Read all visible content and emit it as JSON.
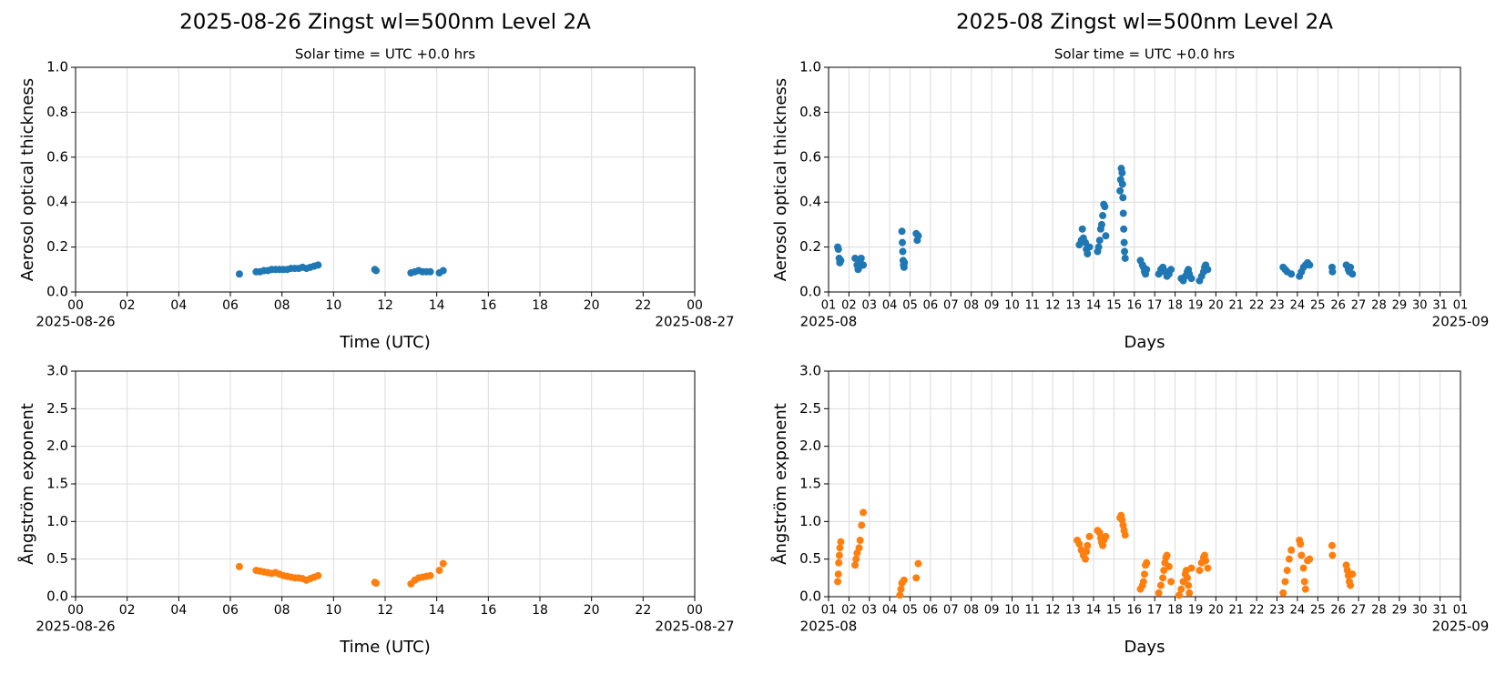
{
  "chart_data": [
    {
      "type": "scatter",
      "title": "2025-08-26  Zingst  wl=500nm  Level 2A",
      "subtitle": "Solar time = UTC +0.0 hrs",
      "xlabel": "Time (UTC)",
      "ylabel": "Aerosol optical thickness",
      "color": "#1f77b4",
      "grid": true,
      "xlim": [
        0,
        24
      ],
      "ylim": [
        0,
        1
      ],
      "xticks": [
        {
          "value": 0,
          "label": "00"
        },
        {
          "value": 2,
          "label": "02"
        },
        {
          "value": 4,
          "label": "04"
        },
        {
          "value": 6,
          "label": "06"
        },
        {
          "value": 8,
          "label": "08"
        },
        10,
        12,
        14,
        16,
        18,
        20,
        22,
        {
          "value": 24,
          "label": "00"
        }
      ],
      "yticks": [
        {
          "value": 0,
          "label": "0.0"
        },
        0.2,
        0.4,
        0.6,
        0.8,
        {
          "value": 1,
          "label": "1.0"
        }
      ],
      "x_edge_labels": [
        "2025-08-26",
        "2025-08-27"
      ],
      "x": [
        6.35,
        7.0,
        7.15,
        7.3,
        7.45,
        7.6,
        7.75,
        7.9,
        8.05,
        8.2,
        8.35,
        8.5,
        8.65,
        8.8,
        8.95,
        9.1,
        9.25,
        9.4,
        11.6,
        11.65,
        13.0,
        13.15,
        13.3,
        13.45,
        13.6,
        13.75,
        14.1,
        14.25
      ],
      "values": [
        0.08,
        0.09,
        0.09,
        0.095,
        0.095,
        0.1,
        0.1,
        0.1,
        0.1,
        0.1,
        0.105,
        0.105,
        0.105,
        0.11,
        0.105,
        0.11,
        0.115,
        0.12,
        0.1,
        0.095,
        0.085,
        0.09,
        0.095,
        0.09,
        0.09,
        0.09,
        0.085,
        0.095
      ]
    },
    {
      "type": "scatter",
      "xlabel": "Time (UTC)",
      "ylabel": "Ångström exponent",
      "color": "#ff7f0e",
      "grid": true,
      "xlim": [
        0,
        24
      ],
      "ylim": [
        0,
        3
      ],
      "xticks": [
        {
          "value": 0,
          "label": "00"
        },
        {
          "value": 2,
          "label": "02"
        },
        {
          "value": 4,
          "label": "04"
        },
        {
          "value": 6,
          "label": "06"
        },
        {
          "value": 8,
          "label": "08"
        },
        10,
        12,
        14,
        16,
        18,
        20,
        22,
        {
          "value": 24,
          "label": "00"
        }
      ],
      "yticks": [
        {
          "value": 0,
          "label": "0.0"
        },
        0.5,
        {
          "value": 1,
          "label": "1.0"
        },
        1.5,
        {
          "value": 2,
          "label": "2.0"
        },
        2.5,
        {
          "value": 3,
          "label": "3.0"
        }
      ],
      "x_edge_labels": [
        "2025-08-26",
        "2025-08-27"
      ],
      "x": [
        6.35,
        7.0,
        7.15,
        7.3,
        7.45,
        7.6,
        7.75,
        7.9,
        8.05,
        8.2,
        8.35,
        8.5,
        8.65,
        8.8,
        8.95,
        9.1,
        9.25,
        9.4,
        11.6,
        11.65,
        13.0,
        13.15,
        13.3,
        13.45,
        13.6,
        13.75,
        14.1,
        14.25
      ],
      "values": [
        0.4,
        0.35,
        0.34,
        0.33,
        0.32,
        0.31,
        0.32,
        0.3,
        0.28,
        0.27,
        0.26,
        0.25,
        0.25,
        0.24,
        0.22,
        0.24,
        0.26,
        0.28,
        0.19,
        0.18,
        0.17,
        0.22,
        0.25,
        0.26,
        0.27,
        0.28,
        0.35,
        0.44
      ]
    },
    {
      "type": "scatter",
      "title": "2025-08  Zingst  wl=500nm  Level 2A",
      "subtitle": "Solar time = UTC +0.0 hrs",
      "xlabel": "Days",
      "ylabel": "Aerosol optical thickness",
      "color": "#1f77b4",
      "grid": true,
      "xlim": [
        1,
        32
      ],
      "ylim": [
        0,
        1
      ],
      "xticks": [
        {
          "value": 1,
          "label": "01"
        },
        {
          "value": 2,
          "label": "02"
        },
        {
          "value": 3,
          "label": "03"
        },
        {
          "value": 4,
          "label": "04"
        },
        {
          "value": 5,
          "label": "05"
        },
        {
          "value": 6,
          "label": "06"
        },
        {
          "value": 7,
          "label": "07"
        },
        {
          "value": 8,
          "label": "08"
        },
        {
          "value": 9,
          "label": "09"
        },
        10,
        11,
        12,
        13,
        14,
        15,
        16,
        17,
        18,
        19,
        20,
        21,
        22,
        23,
        24,
        25,
        26,
        27,
        28,
        29,
        30,
        31,
        {
          "value": 32,
          "label": "01"
        }
      ],
      "yticks": [
        {
          "value": 0,
          "label": "0.0"
        },
        0.2,
        0.4,
        0.6,
        0.8,
        {
          "value": 1,
          "label": "1.0"
        }
      ],
      "x_edge_labels": [
        "2025-08",
        "2025-09"
      ],
      "x": [
        1.45,
        1.48,
        1.52,
        1.55,
        1.6,
        2.3,
        2.4,
        2.45,
        2.5,
        2.55,
        2.6,
        2.7,
        4.6,
        4.62,
        4.64,
        4.66,
        4.68,
        4.7,
        4.72,
        5.3,
        5.35,
        5.4,
        13.3,
        13.4,
        13.45,
        13.5,
        13.6,
        13.65,
        13.7,
        13.8,
        14.2,
        14.25,
        14.3,
        14.35,
        14.4,
        14.45,
        14.5,
        14.55,
        14.6,
        15.3,
        15.33,
        15.36,
        15.4,
        15.42,
        15.44,
        15.46,
        15.48,
        15.5,
        15.52,
        15.55,
        16.3,
        16.4,
        16.45,
        16.5,
        16.55,
        16.6,
        17.2,
        17.3,
        17.4,
        17.5,
        17.6,
        17.65,
        17.7,
        17.8,
        18.3,
        18.4,
        18.5,
        18.6,
        18.65,
        18.7,
        18.8,
        19.2,
        19.3,
        19.4,
        19.45,
        19.5,
        19.6,
        23.3,
        23.4,
        23.5,
        23.7,
        24.1,
        24.2,
        24.3,
        24.4,
        24.5,
        24.6,
        25.7,
        25.72,
        26.4,
        26.5,
        26.55,
        26.6,
        26.7
      ],
      "values": [
        0.2,
        0.19,
        0.15,
        0.13,
        0.14,
        0.15,
        0.12,
        0.1,
        0.11,
        0.13,
        0.15,
        0.12,
        0.27,
        0.22,
        0.18,
        0.14,
        0.12,
        0.11,
        0.13,
        0.26,
        0.23,
        0.25,
        0.21,
        0.23,
        0.28,
        0.24,
        0.22,
        0.19,
        0.17,
        0.2,
        0.18,
        0.2,
        0.23,
        0.28,
        0.3,
        0.34,
        0.39,
        0.38,
        0.25,
        0.45,
        0.5,
        0.55,
        0.53,
        0.48,
        0.42,
        0.35,
        0.28,
        0.22,
        0.18,
        0.15,
        0.14,
        0.12,
        0.11,
        0.09,
        0.08,
        0.1,
        0.08,
        0.1,
        0.11,
        0.09,
        0.07,
        0.09,
        0.08,
        0.1,
        0.06,
        0.05,
        0.07,
        0.09,
        0.1,
        0.08,
        0.06,
        0.05,
        0.07,
        0.09,
        0.11,
        0.12,
        0.1,
        0.11,
        0.1,
        0.09,
        0.08,
        0.07,
        0.09,
        0.11,
        0.12,
        0.13,
        0.12,
        0.11,
        0.09,
        0.12,
        0.1,
        0.09,
        0.11,
        0.08
      ]
    },
    {
      "type": "scatter",
      "xlabel": "Days",
      "ylabel": "Ångström exponent",
      "color": "#ff7f0e",
      "grid": true,
      "xlim": [
        1,
        32
      ],
      "ylim": [
        0,
        3
      ],
      "xticks": [
        {
          "value": 1,
          "label": "01"
        },
        {
          "value": 2,
          "label": "02"
        },
        {
          "value": 3,
          "label": "03"
        },
        {
          "value": 4,
          "label": "04"
        },
        {
          "value": 5,
          "label": "05"
        },
        {
          "value": 6,
          "label": "06"
        },
        {
          "value": 7,
          "label": "07"
        },
        {
          "value": 8,
          "label": "08"
        },
        {
          "value": 9,
          "label": "09"
        },
        10,
        11,
        12,
        13,
        14,
        15,
        16,
        17,
        18,
        19,
        20,
        21,
        22,
        23,
        24,
        25,
        26,
        27,
        28,
        29,
        30,
        31,
        {
          "value": 32,
          "label": "01"
        }
      ],
      "yticks": [
        {
          "value": 0,
          "label": "0.0"
        },
        0.5,
        {
          "value": 1,
          "label": "1.0"
        },
        1.5,
        {
          "value": 2,
          "label": "2.0"
        },
        2.5,
        {
          "value": 3,
          "label": "3.0"
        }
      ],
      "x_edge_labels": [
        "2025-08",
        "2025-09"
      ],
      "x": [
        1.45,
        1.48,
        1.5,
        1.53,
        1.56,
        1.6,
        2.3,
        2.35,
        2.4,
        2.5,
        2.55,
        2.62,
        2.7,
        4.5,
        4.55,
        4.6,
        4.7,
        5.3,
        5.4,
        13.2,
        13.3,
        13.4,
        13.5,
        13.6,
        13.65,
        13.7,
        13.8,
        14.2,
        14.3,
        14.35,
        14.4,
        14.45,
        14.5,
        14.6,
        15.3,
        15.35,
        15.4,
        15.45,
        15.5,
        15.55,
        16.3,
        16.4,
        16.45,
        16.5,
        16.55,
        16.6,
        17.2,
        17.3,
        17.4,
        17.45,
        17.5,
        17.55,
        17.6,
        17.7,
        17.8,
        18.2,
        18.3,
        18.4,
        18.5,
        18.55,
        18.6,
        18.65,
        18.7,
        18.8,
        19.2,
        19.3,
        19.4,
        19.45,
        19.5,
        19.6,
        23.3,
        23.4,
        23.5,
        23.6,
        23.7,
        24.1,
        24.15,
        24.2,
        24.3,
        24.35,
        24.4,
        24.5,
        24.6,
        25.7,
        25.72,
        26.4,
        26.45,
        26.5,
        26.55,
        26.6,
        26.7
      ],
      "values": [
        0.2,
        0.3,
        0.45,
        0.55,
        0.65,
        0.73,
        0.42,
        0.5,
        0.58,
        0.65,
        0.75,
        0.95,
        1.12,
        0.02,
        0.1,
        0.18,
        0.22,
        0.25,
        0.44,
        0.75,
        0.7,
        0.62,
        0.55,
        0.5,
        0.6,
        0.68,
        0.8,
        0.88,
        0.85,
        0.78,
        0.72,
        0.68,
        0.75,
        0.8,
        1.05,
        1.08,
        1.02,
        0.95,
        0.88,
        0.82,
        0.1,
        0.15,
        0.2,
        0.3,
        0.42,
        0.45,
        0.05,
        0.15,
        0.25,
        0.35,
        0.45,
        0.52,
        0.55,
        0.4,
        0.2,
        0.02,
        0.1,
        0.2,
        0.3,
        0.35,
        0.25,
        0.15,
        0.05,
        0.38,
        0.35,
        0.45,
        0.52,
        0.55,
        0.48,
        0.38,
        0.05,
        0.2,
        0.35,
        0.5,
        0.62,
        0.75,
        0.7,
        0.55,
        0.38,
        0.2,
        0.1,
        0.48,
        0.5,
        0.68,
        0.55,
        0.42,
        0.35,
        0.28,
        0.2,
        0.15,
        0.3
      ]
    }
  ]
}
